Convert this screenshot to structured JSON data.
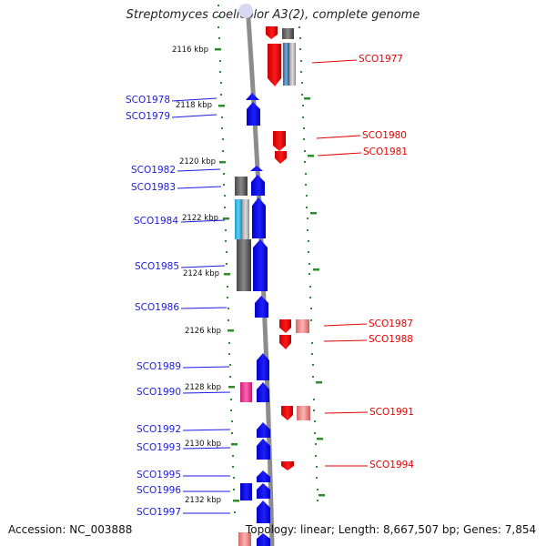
{
  "title": "Streptomyces coelicolor A3(2), complete genome",
  "footer": {
    "accession": "Accession: NC_003888",
    "summary": "Topology: linear; Length: 8,667,507 bp; Genes: 7,854"
  },
  "colors": {
    "reverse_genes": "#1a1ae6",
    "forward_genes": "#e60000",
    "scale_ticks": "#2e8b2e",
    "genome_line": "#8c8c8c",
    "grey_block": "#6e6e6e",
    "cyan_block": "#29b6e6",
    "pink_block": "#e6338c",
    "steel_block": "#4a7fb5",
    "salmon_block": "#e98a8a"
  },
  "scale_labels": [
    "2116 kbp",
    "2118 kbp",
    "2120 kbp",
    "2122 kbp",
    "2124 kbp",
    "2126 kbp",
    "2128 kbp",
    "2130 kbp",
    "2132 kbp"
  ],
  "genes": {
    "left": [
      "SCO1978",
      "SCO1979",
      "SCO1982",
      "SCO1983",
      "SCO1984",
      "SCO1985",
      "SCO1986",
      "SCO1989",
      "SCO1990",
      "SCO1992",
      "SCO1993",
      "SCO1995",
      "SCO1996",
      "SCO1997"
    ],
    "right": [
      "SCO1977",
      "SCO1980",
      "SCO1981",
      "SCO1987",
      "SCO1988",
      "SCO1991",
      "SCO1994"
    ]
  }
}
